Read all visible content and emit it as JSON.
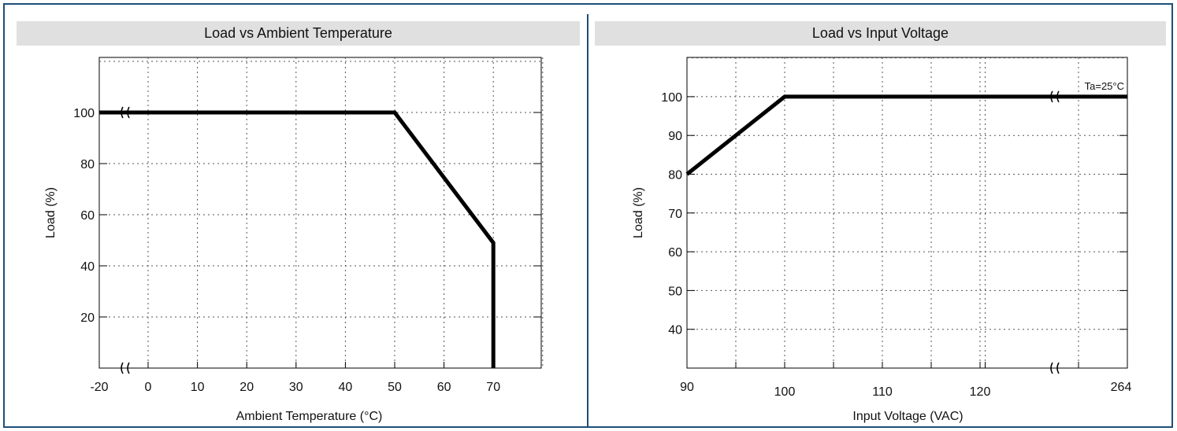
{
  "chart_data": [
    {
      "type": "line",
      "title": "Load vs Ambient Temperature",
      "xlabel": "Ambient Temperature (°C)",
      "ylabel": "Load (%)",
      "xlim": [
        -20,
        80
      ],
      "ylim": [
        0,
        120
      ],
      "x_ticks": [
        "-20",
        "0",
        "10",
        "20",
        "30",
        "40",
        "50",
        "60",
        "70"
      ],
      "y_ticks": [
        "20",
        "40",
        "60",
        "80",
        "100"
      ],
      "x_axis_break": true,
      "y_axis_break": false,
      "grid": true,
      "series": [
        {
          "x": [
            -20,
            50,
            70,
            70
          ],
          "y": [
            100,
            100,
            49,
            0
          ]
        }
      ],
      "annotations": []
    },
    {
      "type": "line",
      "title": "Load vs Input Voltage",
      "xlabel": "Input Voltage (VAC)",
      "ylabel": "Load (%)",
      "ylim": [
        30,
        110
      ],
      "x_ticks": [
        "90",
        "100",
        "110",
        "120",
        "264"
      ],
      "y_ticks": [
        "40",
        "50",
        "60",
        "70",
        "80",
        "90",
        "100"
      ],
      "x_axis_break": true,
      "grid": true,
      "series": [
        {
          "x": [
            90,
            100,
            264
          ],
          "y": [
            80,
            100,
            100
          ]
        }
      ],
      "annotations": [
        "Ta=25°C"
      ]
    }
  ],
  "colors": {
    "frame": "#1f4e79",
    "title_bar": "#e0e0e0",
    "line": "#000000",
    "grid": "#555555"
  }
}
